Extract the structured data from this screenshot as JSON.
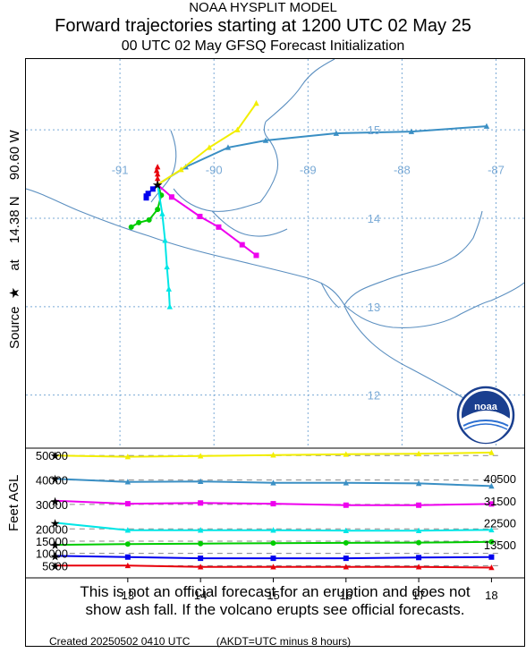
{
  "header": {
    "line1": "NOAA HYSPLIT MODEL",
    "line2": "Forward trajectories starting at 1200 UTC 02 May 25",
    "line3": "00 UTC 02 May    GFSQ  Forecast Initialization"
  },
  "side_label": {
    "lat": "14.38 N",
    "lon": "90.60 W",
    "at": "at",
    "source": "Source",
    "star": "★"
  },
  "logo": {
    "text": "noaa"
  },
  "colors": {
    "red": "#e8000b",
    "blue": "#0000ee",
    "green": "#00cc00",
    "cyan": "#00e6e6",
    "magenta": "#ee00ee",
    "steelblue": "#3a8fc4",
    "yellow": "#f2ee00",
    "map": "#5b8fc0",
    "grid": "#7aaad6"
  },
  "chart_data": [
    {
      "type": "line",
      "name": "map",
      "xlim": [
        -92,
        -86.7
      ],
      "ylim": [
        11.4,
        15.8
      ],
      "lon_ticks": [
        "-91",
        "-90",
        "-89",
        "-88",
        "-87"
      ],
      "lat_ticks": [
        "15",
        "14",
        "13",
        "12"
      ],
      "source": {
        "lon": -90.6,
        "lat": 14.38
      },
      "series": [
        {
          "color": "red",
          "points": [
            [
              -90.6,
              14.38
            ],
            [
              -90.6,
              14.45
            ],
            [
              -90.6,
              14.5
            ],
            [
              -90.61,
              14.54
            ],
            [
              -90.6,
              14.58
            ]
          ]
        },
        {
          "color": "blue",
          "points": [
            [
              -90.6,
              14.38
            ],
            [
              -90.65,
              14.33
            ],
            [
              -90.7,
              14.28
            ],
            [
              -90.72,
              14.25
            ],
            [
              -90.72,
              14.23
            ]
          ]
        },
        {
          "color": "green",
          "points": [
            [
              -90.6,
              14.38
            ],
            [
              -90.56,
              14.26
            ],
            [
              -90.6,
              14.1
            ],
            [
              -90.69,
              13.98
            ],
            [
              -90.8,
              13.95
            ],
            [
              -90.88,
              13.9
            ]
          ]
        },
        {
          "color": "cyan",
          "points": [
            [
              -90.6,
              14.38
            ],
            [
              -90.55,
              14.05
            ],
            [
              -90.52,
              13.75
            ],
            [
              -90.5,
              13.45
            ],
            [
              -90.48,
              13.2
            ],
            [
              -90.47,
              13.0
            ]
          ]
        },
        {
          "color": "magenta",
          "points": [
            [
              -90.6,
              14.38
            ],
            [
              -90.45,
              14.24
            ],
            [
              -90.15,
              14.02
            ],
            [
              -89.95,
              13.9
            ],
            [
              -89.7,
              13.7
            ],
            [
              -89.55,
              13.58
            ]
          ]
        },
        {
          "color": "steelblue",
          "points": [
            [
              -90.6,
              14.38
            ],
            [
              -90.3,
              14.58
            ],
            [
              -89.85,
              14.8
            ],
            [
              -89.45,
              14.88
            ],
            [
              -88.7,
              14.96
            ],
            [
              -87.9,
              14.98
            ],
            [
              -87.1,
              15.04
            ]
          ]
        },
        {
          "color": "yellow",
          "points": [
            [
              -90.6,
              14.38
            ],
            [
              -90.35,
              14.55
            ],
            [
              -90.05,
              14.8
            ],
            [
              -89.75,
              15.0
            ],
            [
              -89.55,
              15.3
            ]
          ]
        }
      ]
    },
    {
      "type": "line",
      "name": "height",
      "ylabel": "Feet AGL",
      "x": [
        12,
        13,
        14,
        15,
        16,
        17,
        18
      ],
      "x_ticks": [
        "13",
        "14",
        "15",
        "16",
        "17",
        "18"
      ],
      "xlim": [
        11.6,
        18.45
      ],
      "ylim": [
        0,
        53000
      ],
      "y_ticks": [
        "50000",
        "40000",
        "30000",
        "20000",
        "15000",
        "10000",
        "5000"
      ],
      "right_labels": [
        "40500",
        "31500",
        "22500",
        "13500"
      ],
      "series": [
        {
          "color": "yellow",
          "values": [
            50000,
            49500,
            49800,
            50200,
            50500,
            50700,
            51200
          ]
        },
        {
          "color": "steelblue",
          "values": [
            40500,
            39200,
            39400,
            38800,
            38800,
            38600,
            37500
          ]
        },
        {
          "color": "magenta",
          "values": [
            31500,
            30300,
            30600,
            30300,
            29700,
            29700,
            30200
          ]
        },
        {
          "color": "cyan",
          "values": [
            22500,
            19500,
            19500,
            19500,
            19300,
            19300,
            19600
          ]
        },
        {
          "color": "green",
          "values": [
            13500,
            13800,
            14000,
            14200,
            14300,
            14400,
            14700
          ]
        },
        {
          "color": "blue",
          "values": [
            9000,
            8500,
            8000,
            8000,
            8000,
            8300,
            8500
          ]
        },
        {
          "color": "red",
          "values": [
            5000,
            5000,
            4500,
            4500,
            4500,
            4500,
            4200
          ]
        }
      ]
    }
  ],
  "disclaimer": {
    "line1": "This is not an official forecast for an eruption and does not",
    "line2": "show ash fall. If the volcano erupts see official forecasts."
  },
  "footer": {
    "created": "Created 20250502 0410 UTC",
    "tz": "(AKDT=UTC minus 8 hours)"
  }
}
